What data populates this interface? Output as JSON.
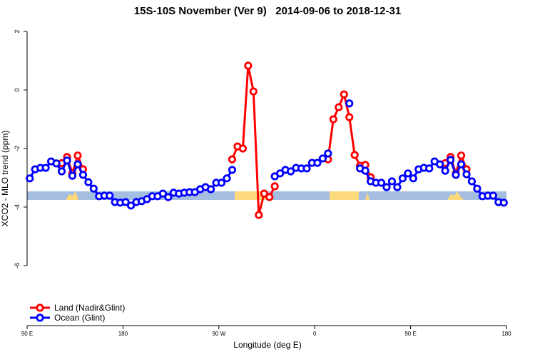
{
  "chart_data": {
    "type": "line",
    "title": "15S-10S November (Ver 9)   2014-09-06 to 2018-12-31",
    "x_label": "Longitude (deg E)",
    "y_label": "XCO2 - MLO trend (ppm)",
    "xlim": [
      90,
      540
    ],
    "ylim": [
      -8,
      2
    ],
    "xticks": [
      {
        "value": 90,
        "label": "90 E"
      },
      {
        "value": 180,
        "label": "180"
      },
      {
        "value": 270,
        "label": "90 W"
      },
      {
        "value": 360,
        "label": "0"
      },
      {
        "value": 450,
        "label": "90 E"
      },
      {
        "value": 540,
        "label": "180"
      }
    ],
    "yticks": [
      2,
      0,
      -2,
      -4,
      -6
    ],
    "legend": "bottom-left",
    "x": [
      92.5,
      97.5,
      102.5,
      107.5,
      112.5,
      117.5,
      122.5,
      127.5,
      132.5,
      137.5,
      142.5,
      147.5,
      152.5,
      157.5,
      162.5,
      167.5,
      172.5,
      177.5,
      182.5,
      187.5,
      192.5,
      197.5,
      202.5,
      207.5,
      212.5,
      217.5,
      222.5,
      227.5,
      232.5,
      237.5,
      242.5,
      247.5,
      252.5,
      257.5,
      262.5,
      267.5,
      272.5,
      277.5,
      282.5,
      287.5,
      292.5,
      297.5,
      302.5,
      307.5,
      312.5,
      317.5,
      322.5,
      327.5,
      332.5,
      337.5,
      342.5,
      347.5,
      352.5,
      357.5,
      362.5,
      367.5,
      372.5,
      377.5,
      382.5,
      387.5,
      392.5,
      397.5,
      402.5,
      407.5,
      412.5,
      417.5,
      422.5,
      427.5,
      432.5,
      437.5,
      442.5,
      447.5,
      452.5,
      457.5,
      462.5,
      467.5,
      472.5,
      477.5,
      482.5,
      487.5,
      492.5,
      497.5,
      502.5,
      507.5,
      512.5,
      517.5,
      522.5,
      527.5,
      532.5,
      537.5
    ],
    "series": [
      {
        "name": "Land (Nadir&Glint)",
        "color": "#ff0000",
        "values": [
          null,
          null,
          null,
          null,
          null,
          null,
          -2.5,
          -2.29,
          -2.85,
          -2.24,
          -2.71,
          null,
          null,
          null,
          null,
          null,
          null,
          null,
          null,
          null,
          null,
          null,
          null,
          null,
          null,
          null,
          null,
          null,
          null,
          null,
          null,
          null,
          null,
          null,
          null,
          null,
          null,
          null,
          -2.37,
          -1.93,
          -2.0,
          0.83,
          -0.05,
          -4.27,
          -3.54,
          -3.66,
          -3.29,
          null,
          null,
          null,
          null,
          null,
          null,
          null,
          null,
          null,
          -2.37,
          -1.0,
          -0.59,
          -0.15,
          -0.93,
          -2.22,
          -2.59,
          -2.56,
          -2.98,
          null,
          null,
          null,
          null,
          null,
          null,
          null,
          null,
          null,
          null,
          null,
          null,
          null,
          -2.5,
          -2.29,
          -2.85,
          -2.24,
          -2.71,
          null,
          null,
          null,
          null,
          null,
          null,
          null
        ]
      },
      {
        "name": "Ocean (Glint)",
        "color": "#0000ff",
        "values": [
          -3.02,
          -2.71,
          -2.66,
          -2.66,
          -2.44,
          -2.51,
          -2.78,
          -2.41,
          -2.93,
          -2.54,
          -2.9,
          -3.15,
          -3.37,
          -3.63,
          -3.61,
          -3.61,
          -3.83,
          -3.85,
          -3.83,
          -3.95,
          -3.83,
          -3.8,
          -3.73,
          -3.63,
          -3.63,
          -3.54,
          -3.66,
          -3.51,
          -3.54,
          -3.51,
          -3.49,
          -3.49,
          -3.39,
          -3.32,
          -3.39,
          -3.17,
          -3.17,
          -3.02,
          -2.73,
          null,
          null,
          null,
          null,
          null,
          null,
          null,
          -2.95,
          -2.85,
          -2.73,
          -2.78,
          -2.66,
          -2.68,
          -2.68,
          -2.49,
          -2.49,
          -2.34,
          -2.17,
          null,
          null,
          null,
          -0.46,
          null,
          -2.68,
          -2.76,
          -3.12,
          -3.17,
          -3.17,
          -3.32,
          -3.12,
          -3.32,
          -3.02,
          -2.85,
          -3.02,
          -2.71,
          -2.66,
          -2.68,
          -2.44,
          -2.54,
          -2.76,
          -2.39,
          -2.9,
          -2.54,
          -2.88,
          -3.12,
          -3.37,
          -3.63,
          -3.61,
          -3.61,
          -3.83,
          -3.85
        ]
      }
    ]
  }
}
